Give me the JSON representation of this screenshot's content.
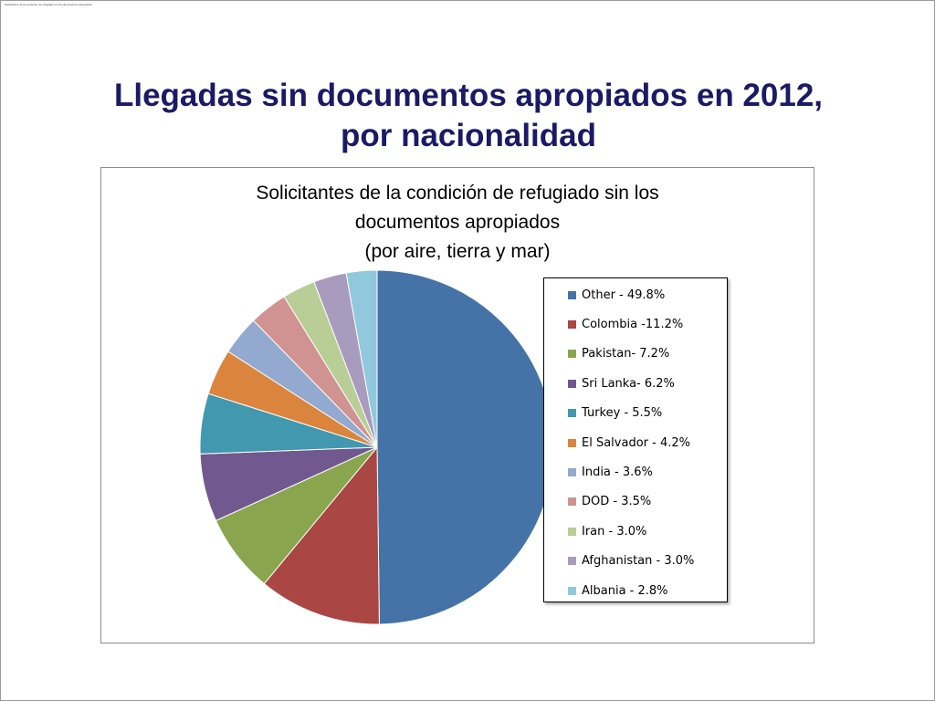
{
  "page": {
    "header_small": "Solicitantes de la condición de refugiado sin los documentos apropiados",
    "title_line1": "Llegadas sin documentos apropiados en 2012,",
    "title_line2": "por nacionalidad"
  },
  "chart_data": {
    "type": "pie",
    "title_lines": [
      "Solicitantes de la condición de refugiado sin los",
      "documentos apropiados",
      "(por aire, tierra y mar)"
    ],
    "legend_position": "right",
    "slices": [
      {
        "name": "Other",
        "label": "Other - 49.8%",
        "value": 49.8,
        "color": "#4572a7"
      },
      {
        "name": "Colombia",
        "label": "Colombia -11.2%",
        "value": 11.2,
        "color": "#aa4643"
      },
      {
        "name": "Pakistan",
        "label": "Pakistan- 7.2%",
        "value": 7.2,
        "color": "#89a54e"
      },
      {
        "name": "Sri Lanka",
        "label": "Sri Lanka- 6.2%",
        "value": 6.2,
        "color": "#71588f"
      },
      {
        "name": "Turkey",
        "label": "Turkey - 5.5%",
        "value": 5.5,
        "color": "#4198af"
      },
      {
        "name": "El Salvador",
        "label": "El Salvador - 4.2%",
        "value": 4.2,
        "color": "#db843d"
      },
      {
        "name": "India",
        "label": "India - 3.6%",
        "value": 3.6,
        "color": "#93a9cf"
      },
      {
        "name": "DOD",
        "label": "DOD - 3.5%",
        "value": 3.5,
        "color": "#d19392"
      },
      {
        "name": "Iran",
        "label": "Iran - 3.0%",
        "value": 3.0,
        "color": "#b9cd96"
      },
      {
        "name": "Afghanistan",
        "label": "Afghanistan - 3.0%",
        "value": 3.0,
        "color": "#a99bbd"
      },
      {
        "name": "Albania",
        "label": "Albania - 2.8%",
        "value": 2.8,
        "color": "#92c8dc"
      }
    ]
  }
}
